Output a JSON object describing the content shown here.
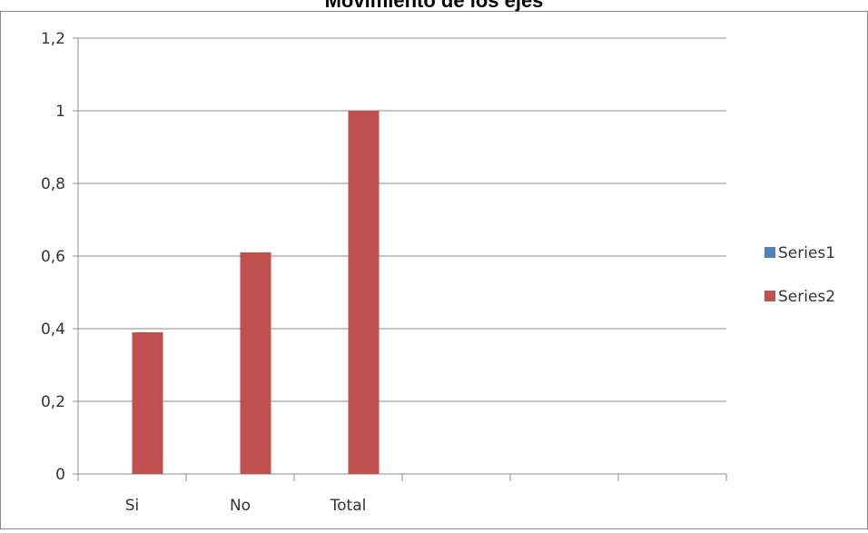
{
  "chart_data": {
    "type": "bar",
    "title": "Movimiento de los ejes",
    "categories": [
      "Si",
      "No",
      "Total",
      "",
      "",
      ""
    ],
    "series": [
      {
        "name": "Series1",
        "color": "#4F81BD",
        "values": [
          0,
          0,
          0,
          null,
          null,
          null
        ]
      },
      {
        "name": "Series2",
        "color": "#C0504D",
        "values": [
          0.39,
          0.61,
          1,
          null,
          null,
          null
        ]
      }
    ],
    "y_ticks": [
      "0",
      "0,2",
      "0,4",
      "0,6",
      "0,8",
      "1",
      "1,2"
    ],
    "ylim": [
      0,
      1.2
    ],
    "y_step": 0.2,
    "grid": true,
    "legend_position": "right"
  }
}
